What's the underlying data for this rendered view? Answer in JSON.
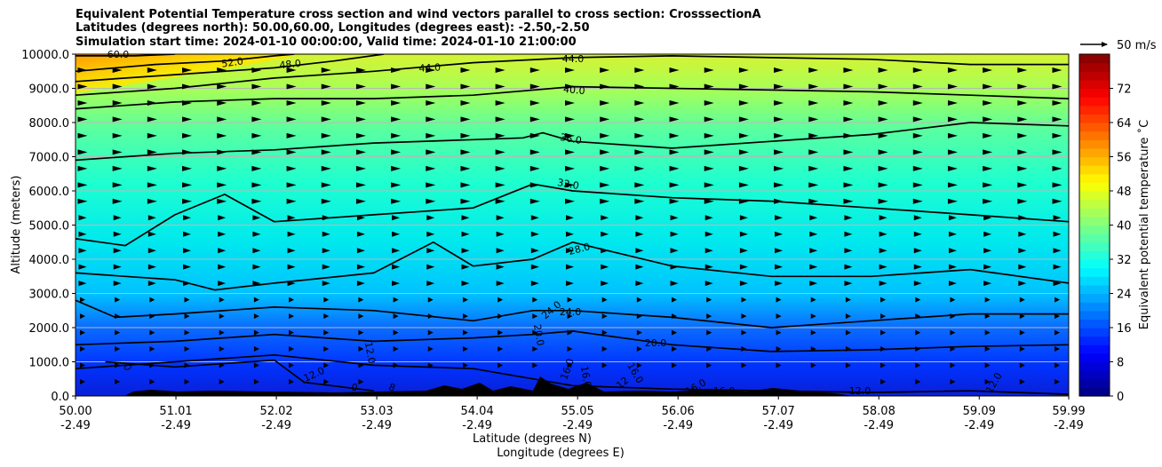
{
  "header": {
    "title_line1": "Equivalent Potential Temperature cross section and wind vectors parallel to cross section: CrosssectionA",
    "title_line2": "Latitudes (degrees north): 50.00,60.00, Longitudes (degrees east): -2.50,-2.50",
    "title_line3": "Simulation start time: 2024-01-10 00:00:00, Valid time: 2024-01-10 21:00:00"
  },
  "chart_data": {
    "type": "heatmap",
    "xlabel_line1": "Latitude (degrees N)",
    "xlabel_line2": "Longitude (degrees E)",
    "ylabel": "Altitude (meters)",
    "ylim": [
      0,
      10000
    ],
    "y_ticks": [
      "0.0",
      "1000.0",
      "2000.0",
      "3000.0",
      "4000.0",
      "5000.0",
      "6000.0",
      "7000.0",
      "8000.0",
      "9000.0",
      "10000.0"
    ],
    "x_ticks": [
      {
        "lat": "50.00",
        "lon": "-2.49"
      },
      {
        "lat": "51.01",
        "lon": "-2.49"
      },
      {
        "lat": "52.02",
        "lon": "-2.49"
      },
      {
        "lat": "53.03",
        "lon": "-2.49"
      },
      {
        "lat": "54.04",
        "lon": "-2.49"
      },
      {
        "lat": "55.05",
        "lon": "-2.49"
      },
      {
        "lat": "56.06",
        "lon": "-2.49"
      },
      {
        "lat": "57.07",
        "lon": "-2.49"
      },
      {
        "lat": "58.08",
        "lon": "-2.49"
      },
      {
        "lat": "59.09",
        "lon": "-2.49"
      },
      {
        "lat": "59.99",
        "lon": "-2.49"
      }
    ],
    "grid": "horizontal",
    "colorbar": {
      "label": "Equivalent potential temperature ˚C",
      "range": [
        0,
        80
      ],
      "ticks": [
        "0",
        "8",
        "16",
        "24",
        "32",
        "40",
        "48",
        "56",
        "64",
        "72"
      ]
    },
    "wind_key": "50 m/s",
    "contour_labels": [
      "60.0",
      "52.0",
      "48.0",
      "44.0",
      "44.0",
      "40.0",
      "36.0",
      "32.0",
      "28.0",
      "24.0",
      "24.0",
      "20.0",
      "20.0",
      "16.0",
      "16.0",
      "16.0",
      "16.0",
      "16.0",
      "12.0",
      "12.0",
      "12.0",
      "12.0",
      "8",
      "0",
      "0",
      "12"
    ],
    "contours": [
      {
        "level": "60",
        "x": [
          50.0,
          50.6,
          51.0
        ],
        "y": [
          9950,
          9950,
          10000
        ]
      },
      {
        "level": "52",
        "x": [
          50.0,
          50.8,
          51.5,
          52.0,
          52.2
        ],
        "y": [
          9500,
          9700,
          9800,
          9950,
          10000
        ]
      },
      {
        "level": "48",
        "x": [
          50.0,
          51.0,
          52.0,
          52.6,
          53.1
        ],
        "y": [
          9200,
          9400,
          9600,
          9800,
          10000
        ]
      },
      {
        "level": "44",
        "x": [
          50.0,
          51.0,
          52.0,
          53.0,
          54.0,
          55.0,
          56.0,
          57.0,
          58.0,
          59.0,
          59.99
        ],
        "y": [
          8800,
          9000,
          9300,
          9500,
          9750,
          9900,
          9950,
          9900,
          9850,
          9700,
          9700
        ]
      },
      {
        "level": "40",
        "x": [
          50.0,
          51.0,
          52.0,
          53.0,
          54.0,
          55.0,
          56.0,
          57.0,
          58.0,
          59.0,
          59.99
        ],
        "y": [
          8400,
          8600,
          8700,
          8700,
          8800,
          9050,
          9000,
          8950,
          8900,
          8800,
          8700
        ]
      },
      {
        "level": "36",
        "x": [
          50.0,
          51.0,
          52.0,
          53.0,
          54.0,
          54.5,
          54.7,
          55.0,
          56.0,
          57.0,
          58.0,
          59.0,
          59.99
        ],
        "y": [
          6900,
          7100,
          7200,
          7400,
          7500,
          7550,
          7700,
          7450,
          7250,
          7450,
          7650,
          8000,
          7900
        ]
      },
      {
        "level": "32",
        "x": [
          50.0,
          50.5,
          51.0,
          51.5,
          52.0,
          53.0,
          54.0,
          54.6,
          55.0,
          56.0,
          57.0,
          58.0,
          59.0,
          59.99
        ],
        "y": [
          4600,
          4400,
          5300,
          5900,
          5100,
          5300,
          5500,
          6200,
          6000,
          5800,
          5700,
          5500,
          5300,
          5100
        ]
      },
      {
        "level": "28",
        "x": [
          50.0,
          50.5,
          51.0,
          51.4,
          52.0,
          53.0,
          53.6,
          54.0,
          54.6,
          55.0,
          56.0,
          57.0,
          58.0,
          59.0,
          59.99
        ],
        "y": [
          3600,
          3500,
          3400,
          3100,
          3300,
          3600,
          4500,
          3800,
          4000,
          4500,
          3800,
          3500,
          3500,
          3700,
          3300
        ]
      },
      {
        "level": "24",
        "x": [
          50.0,
          50.4,
          51.0,
          52.0,
          53.0,
          54.0,
          54.6,
          55.0,
          56.0,
          57.0,
          58.0,
          59.0,
          59.99
        ],
        "y": [
          2800,
          2300,
          2400,
          2600,
          2500,
          2200,
          2500,
          2500,
          2300,
          2000,
          2200,
          2400,
          2400
        ]
      },
      {
        "level": "20",
        "x": [
          50.0,
          51.0,
          52.0,
          53.0,
          54.0,
          54.6,
          55.0,
          56.0,
          57.0,
          58.0,
          59.0,
          59.99
        ],
        "y": [
          1500,
          1600,
          1800,
          1600,
          1700,
          1800,
          1900,
          1500,
          1300,
          1350,
          1450,
          1500
        ]
      },
      {
        "level": "16",
        "x": [
          50.0,
          51.0,
          52.0,
          53.0,
          54.0,
          55.0,
          56.0,
          57.0,
          58.0,
          59.0,
          59.99
        ],
        "y": [
          800,
          1000,
          1200,
          900,
          800,
          300,
          200,
          150,
          100,
          150,
          50
        ]
      },
      {
        "level": "12",
        "x": [
          50.3,
          51.0,
          52.0,
          52.3,
          53.0
        ],
        "y": [
          1000,
          850,
          1050,
          400,
          150
        ]
      }
    ]
  }
}
